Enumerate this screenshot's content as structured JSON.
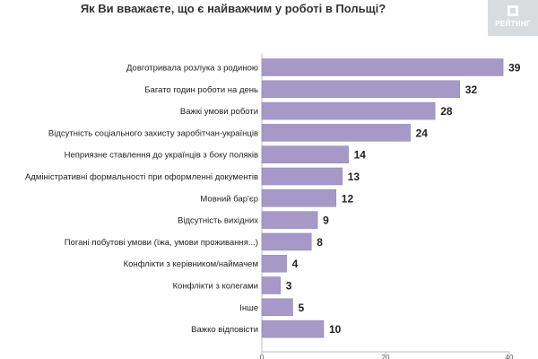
{
  "title": "Як Ви вважаєте, що є найважчим у роботі в Польщі?",
  "logo": {
    "text": "РЕЙТИНГ",
    "icon": "rating-logo-icon"
  },
  "colors": {
    "bar": "#a699c8",
    "bar_edge": "#8f82b5",
    "axis": "#bdbdbd",
    "text": "#222222"
  },
  "chart_data": {
    "type": "bar",
    "orientation": "horizontal",
    "title": "Як Ви вважаєте, що є найважчим у роботі в Польщі?",
    "categories": [
      "Довготривала розлука з родиною",
      "Багато годин роботи на день",
      "Важкі умови роботи",
      "Відсутність соціального захисту заробітчан-українців",
      "Неприязне ставлення до українців з боку поляків",
      "Адміністративні формальності при оформленні документів",
      "Мовний бар'єр",
      "Відсутність вихідних",
      "Погані побутові умови (їжа, умови проживання...)",
      "Конфлікти з керівником/наймачем",
      "Конфлікти з колегами",
      "Інше",
      "Важко відповісти"
    ],
    "values": [
      39,
      32,
      28,
      24,
      14,
      13,
      12,
      9,
      8,
      4,
      3,
      5,
      10
    ],
    "xlim": [
      0,
      40
    ],
    "xticks": [
      "0",
      "20",
      "40"
    ],
    "grid": false,
    "legend": "none"
  }
}
